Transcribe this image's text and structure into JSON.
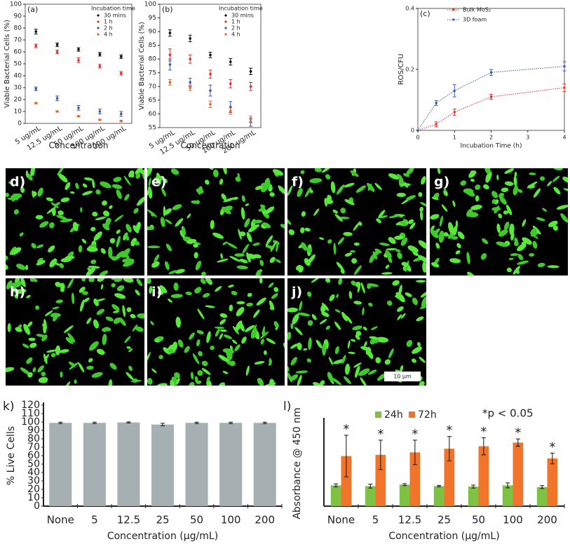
{
  "chart_data": [
    {
      "type": "dot",
      "panel_label": "(a)",
      "y_label": "Viable Bacterial Cells (%)",
      "x_label": "Concentration",
      "legend_title": "Incubation time",
      "categories": [
        "5 ug/mL",
        "12.5 ug/mL",
        "50 ug/mL",
        "100 ug/mL",
        "200 ug/mL"
      ],
      "ylim": [
        0,
        100
      ],
      "yticks": [
        0,
        10,
        20,
        30,
        40,
        50,
        60,
        70,
        80,
        90,
        100
      ],
      "series": [
        {
          "name": "30 mins",
          "color": "#111111",
          "values": [
            77,
            66,
            62,
            58,
            56
          ],
          "errors": [
            2,
            1.5,
            1.5,
            1.5,
            1.5
          ]
        },
        {
          "name": "1 h",
          "color": "#e0302a",
          "values": [
            65,
            60,
            53,
            48,
            42
          ],
          "errors": [
            1.5,
            1.5,
            2,
            1.5,
            1.5
          ]
        },
        {
          "name": "2 h",
          "color": "#3a5aa8",
          "values": [
            29,
            21,
            13,
            10,
            8
          ],
          "errors": [
            1.5,
            2,
            2,
            2,
            2
          ]
        },
        {
          "name": "4 h",
          "color": "#e8661e",
          "values": [
            17,
            10,
            6,
            3,
            2
          ],
          "errors": [
            0.5,
            0.5,
            0.5,
            0.5,
            0.5
          ]
        }
      ]
    },
    {
      "type": "dot",
      "panel_label": "(b)",
      "y_label": "Viable Bacterial Cells (%)",
      "x_label": "Concentration",
      "legend_title": "Incubation time",
      "categories": [
        "5 ug/mL",
        "12.5 ug/mL",
        "50 ug/mL",
        "100 ug/mL",
        "200 ug/mL"
      ],
      "ylim": [
        55,
        100
      ],
      "yticks": [
        55,
        60,
        65,
        70,
        75,
        80,
        85,
        90,
        95,
        100
      ],
      "series": [
        {
          "name": "30 mins",
          "color": "#111111",
          "values": [
            89.5,
            87.5,
            81.5,
            79,
            75.5
          ],
          "errors": [
            1.2,
            1.2,
            1,
            1.2,
            1.2
          ]
        },
        {
          "name": "1 h",
          "color": "#e0302a",
          "values": [
            81.5,
            80,
            74.5,
            71,
            70
          ],
          "errors": [
            2.2,
            1.5,
            1.5,
            1.5,
            1.5
          ]
        },
        {
          "name": "2 h",
          "color": "#3a5aa8",
          "values": [
            78,
            71.5,
            68.5,
            62.5,
            57
          ],
          "errors": [
            2,
            1.5,
            2,
            2,
            1.5
          ]
        },
        {
          "name": "4 h",
          "color": "#e8661e",
          "values": [
            71.5,
            69.5,
            63.5,
            61,
            58
          ],
          "errors": [
            1,
            1,
            1.2,
            1.2,
            1.2
          ]
        }
      ]
    },
    {
      "type": "line",
      "panel_label": "(c)",
      "y_label": "ROS/CFU",
      "x_label": "Incubation Time (h)",
      "x": [
        0,
        0.5,
        1,
        2,
        4
      ],
      "xlim": [
        0,
        4
      ],
      "xticks": [
        0,
        1,
        2,
        3,
        4
      ],
      "ylim": [
        0,
        0.4
      ],
      "yticks": [
        0,
        0.2,
        0.4
      ],
      "series": [
        {
          "name": "Bulk MoS₂",
          "color": "#e0302a",
          "values": [
            0,
            0.02,
            0.06,
            0.11,
            0.14
          ],
          "errors": [
            0,
            0.008,
            0.01,
            0.008,
            0.012
          ]
        },
        {
          "name": "3D foam",
          "color": "#3a5aa8",
          "values": [
            0,
            0.09,
            0.13,
            0.19,
            0.21
          ],
          "errors": [
            0,
            0.008,
            0.02,
            0.01,
            0.015
          ]
        }
      ]
    },
    {
      "type": "bar",
      "panel_label": "k)",
      "y_label": "% Live Cells",
      "x_label": "Concentration (μg/mL)",
      "categories": [
        "None",
        "5",
        "12.5",
        "25",
        "50",
        "100",
        "200"
      ],
      "ylim": [
        0,
        120
      ],
      "yticks": [
        0,
        10,
        20,
        30,
        40,
        50,
        60,
        70,
        80,
        90,
        100,
        110,
        120
      ],
      "series": [
        {
          "color": "#a6b0b3",
          "values": [
            99,
            99,
            99.5,
            97,
            99,
            99,
            99
          ],
          "errors": [
            0.8,
            0.8,
            0.6,
            1.5,
            0.8,
            0.8,
            0.8
          ]
        }
      ]
    },
    {
      "type": "bar",
      "panel_label": "l)",
      "y_label": "Absorbance @ 450 nm",
      "x_label": "Concentration (μg/mL)",
      "annotation": "*p < 0.05",
      "significance_marker": "*",
      "categories": [
        "None",
        "5",
        "12.5",
        "25",
        "50",
        "100",
        "200"
      ],
      "ylim": [
        0,
        3.5
      ],
      "series": [
        {
          "name": "24h",
          "color": "#7dc243",
          "values": [
            0.85,
            0.82,
            0.88,
            0.82,
            0.8,
            0.85,
            0.78
          ],
          "errors": [
            0.06,
            0.08,
            0.04,
            0.03,
            0.06,
            0.1,
            0.06
          ]
        },
        {
          "name": "72h",
          "color": "#f2742a",
          "values": [
            2.05,
            2.1,
            2.2,
            2.35,
            2.45,
            2.6,
            1.95
          ],
          "errors": [
            0.85,
            0.6,
            0.5,
            0.5,
            0.35,
            0.15,
            0.22
          ]
        }
      ]
    }
  ],
  "images": {
    "panels": [
      "d)",
      "e)",
      "f)",
      "g)",
      "h)",
      "i)",
      "j)"
    ],
    "scale_bar": "10 μm"
  }
}
